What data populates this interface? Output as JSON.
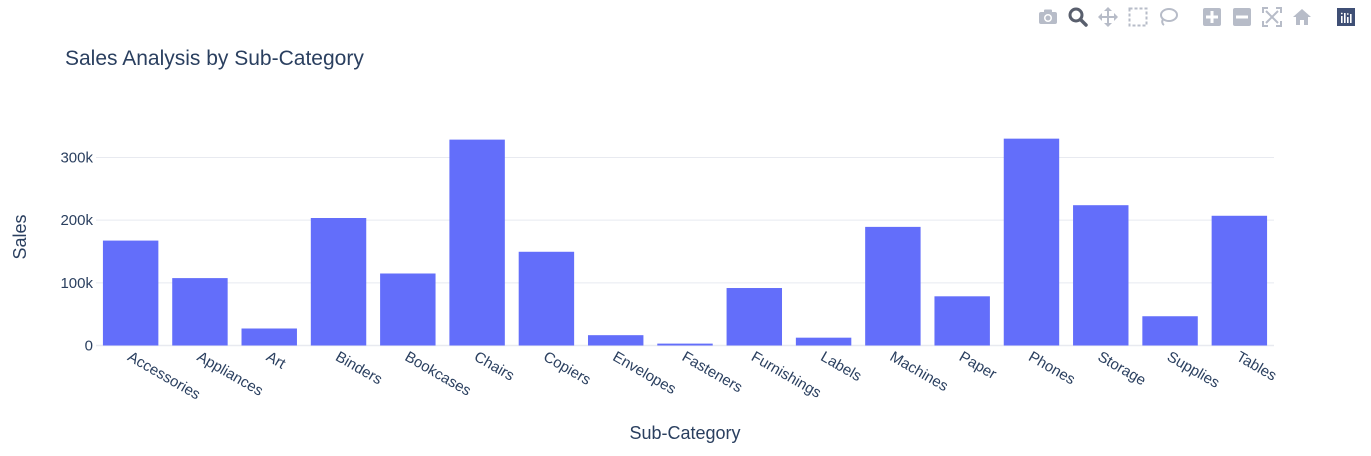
{
  "theme": {
    "bar_color": "#636efa",
    "grid_color": "#e8eaf0",
    "text_color": "#2a3f5f",
    "icon_color": "#b7bcc8",
    "icon_active_color": "#595f6d",
    "logo_color": "#3f4f75"
  },
  "modebar": {
    "buttons": [
      {
        "name": "camera-icon"
      },
      {
        "name": "zoom-icon"
      },
      {
        "name": "pan-icon"
      },
      {
        "name": "box-select-icon"
      },
      {
        "name": "lasso-select-icon"
      },
      {
        "name": "zoom-in-icon"
      },
      {
        "name": "zoom-out-icon"
      },
      {
        "name": "autoscale-icon"
      },
      {
        "name": "reset-axes-icon"
      },
      {
        "name": "plotly-logo-icon"
      }
    ]
  },
  "chart_data": {
    "type": "bar",
    "title": "Sales Analysis by Sub-Category",
    "xlabel": "Sub-Category",
    "ylabel": "Sales",
    "categories": [
      "Accessories",
      "Appliances",
      "Art",
      "Binders",
      "Bookcases",
      "Chairs",
      "Copiers",
      "Envelopes",
      "Fasteners",
      "Furnishings",
      "Labels",
      "Machines",
      "Paper",
      "Phones",
      "Storage",
      "Supplies",
      "Tables"
    ],
    "values": [
      167380,
      107532,
      27119,
      203413,
      114880,
      328449,
      149528,
      16476,
      3024,
      91705,
      12486,
      189239,
      78479,
      330007,
      223844,
      46674,
      206966
    ],
    "ylim": [
      0,
      347000
    ],
    "yticks": [
      0,
      100000,
      200000,
      300000
    ],
    "ytick_labels": [
      "0",
      "100k",
      "200k",
      "300k"
    ],
    "grid": true,
    "legend": "none"
  }
}
